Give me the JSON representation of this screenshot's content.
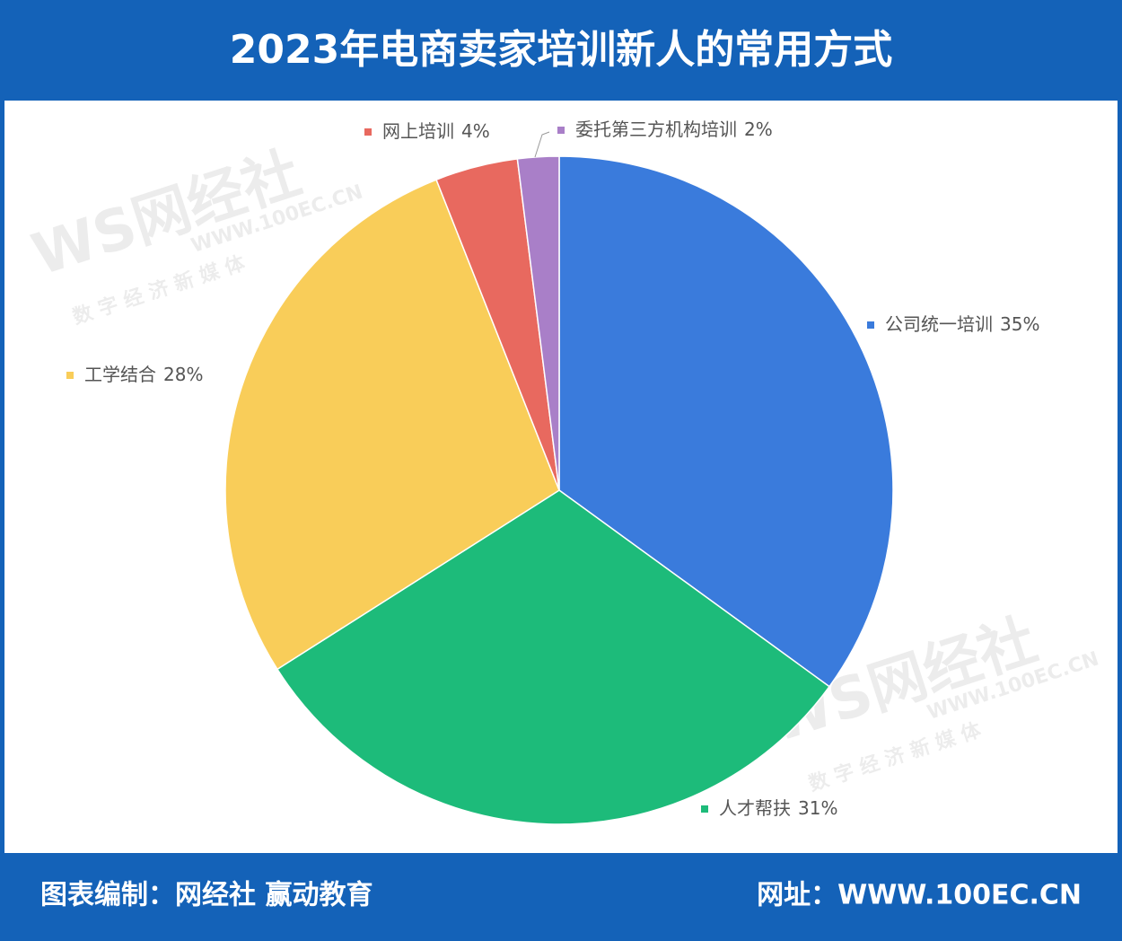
{
  "chart_data": {
    "type": "pie",
    "title": "2023年电商卖家培训新人的常用方式",
    "categories": [
      "公司统一培训",
      "人才帮扶",
      "工学结合",
      "网上培训",
      "委托第三方机构培训"
    ],
    "values": [
      35,
      31,
      28,
      4,
      2
    ],
    "value_labels": [
      "35%",
      "31%",
      "28%",
      "4%",
      "2%"
    ],
    "colors": [
      "#3a7bdc",
      "#1dbb7a",
      "#f9cd59",
      "#e8695f",
      "#a97fc8"
    ],
    "watermark": {
      "logo": "WS网经社",
      "site": "WWW.100EC.CN",
      "slogan": "数 字 经 济 新 媒 体"
    },
    "footer": {
      "left": "图表编制：网经社 赢动教育",
      "right": "网址：WWW.100EC.CN"
    }
  }
}
